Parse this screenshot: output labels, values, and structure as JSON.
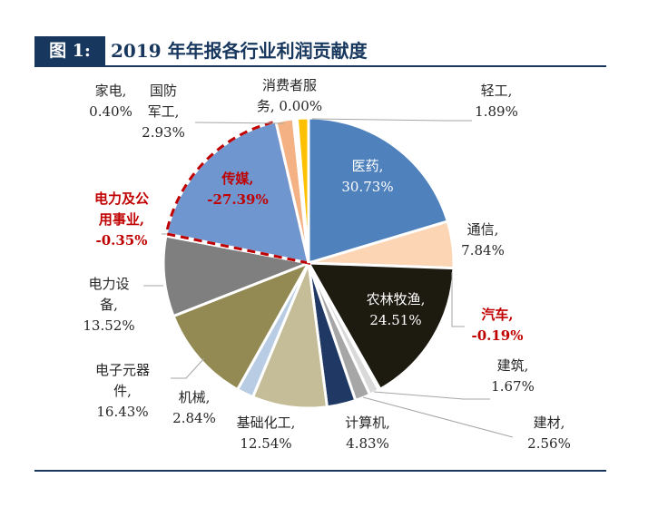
{
  "header": {
    "figure_label": "图 1:",
    "title": "2019 年年报各行业利润贡献度"
  },
  "colors": {
    "navy": "#17375e",
    "highlight": "#c00000",
    "text": "#262626"
  },
  "chart_data": {
    "type": "pie",
    "title": "2019 年年报各行业利润贡献度",
    "unit": "%",
    "slices": [
      {
        "key": "yiyao",
        "name": "医药",
        "value": 30.73,
        "value_label": "30.73%",
        "color": "#4f81bd",
        "text_color": "#ffffff",
        "highlight": false
      },
      {
        "key": "tongxin",
        "name": "通信",
        "value": 7.84,
        "value_label": "7.84%",
        "color": "#fcd5b5",
        "text_color": "#262626",
        "highlight": false
      },
      {
        "key": "nonglin",
        "name": "农林牧渔",
        "value": 24.51,
        "value_label": "24.51%",
        "color": "#1d1b10",
        "text_color": "#ffffff",
        "highlight": false
      },
      {
        "key": "qiche",
        "name": "汽车",
        "value": -0.19,
        "value_label": "-0.19%",
        "color": "#ffffff",
        "text_color": "#c00000",
        "highlight": true
      },
      {
        "key": "jianzhu",
        "name": "建筑",
        "value": 1.67,
        "value_label": "1.67%",
        "color": "#d9d9d9",
        "text_color": "#262626",
        "highlight": false
      },
      {
        "key": "jiancai",
        "name": "建材",
        "value": 2.56,
        "value_label": "2.56%",
        "color": "#a6a6a6",
        "text_color": "#262626",
        "highlight": false
      },
      {
        "key": "jisuanji",
        "name": "计算机",
        "value": 4.83,
        "value_label": "4.83%",
        "color": "#1f3864",
        "text_color": "#262626",
        "highlight": false
      },
      {
        "key": "jichu",
        "name": "基础化工",
        "value": 12.54,
        "value_label": "12.54%",
        "color": "#c4bd97",
        "text_color": "#262626",
        "highlight": false
      },
      {
        "key": "jixie",
        "name": "机械",
        "value": 2.84,
        "value_label": "2.84%",
        "color": "#b8cce4",
        "text_color": "#262626",
        "highlight": false
      },
      {
        "key": "dianzi",
        "name": "电子元器件",
        "value": 16.43,
        "value_label": "16.43%",
        "color": "#938953",
        "text_color": "#262626",
        "highlight": false
      },
      {
        "key": "dlsb",
        "name": "电力设备",
        "value": 13.52,
        "value_label": "13.52%",
        "color": "#7f7f7f",
        "text_color": "#262626",
        "highlight": false
      },
      {
        "key": "dlgy",
        "name": "电力及公用事业",
        "value": -0.35,
        "value_label": "-0.35%",
        "color": "#ffffff",
        "text_color": "#c00000",
        "highlight": true
      },
      {
        "key": "chuanmei",
        "name": "传媒",
        "value": -27.39,
        "value_label": "-27.39%",
        "color": "#7096cf",
        "text_color": "#c00000",
        "highlight": true
      },
      {
        "key": "guofang",
        "name": "国防军工",
        "value": 2.93,
        "value_label": "2.93%",
        "color": "#f4b183",
        "text_color": "#262626",
        "highlight": false
      },
      {
        "key": "jiadian",
        "name": "家电",
        "value": 0.4,
        "value_label": "0.40%",
        "color": "#ffffff",
        "text_color": "#262626",
        "highlight": false
      },
      {
        "key": "xiaofei",
        "name": "消费者服务",
        "value": 0.0,
        "value_label": "0.00%",
        "color": "#ffffff",
        "text_color": "#262626",
        "highlight": false
      },
      {
        "key": "qinggong",
        "name": "轻工",
        "value": 1.89,
        "value_label": "1.89%",
        "color": "#ffc000",
        "text_color": "#262626",
        "highlight": false
      }
    ],
    "labels": {
      "yiyao": [
        "医药,",
        "30.73%"
      ],
      "tongxin": [
        "通信,",
        "7.84%"
      ],
      "nonglin": [
        "农林牧渔,",
        "24.51%"
      ],
      "qiche": [
        "汽车,",
        "-0.19%"
      ],
      "jianzhu": [
        "建筑,",
        "1.67%"
      ],
      "jiancai": [
        "建材,",
        "2.56%"
      ],
      "jisuanji": [
        "计算机,",
        "4.83%"
      ],
      "jichu": [
        "基础化工,",
        "12.54%"
      ],
      "jixie": [
        "机械,",
        "2.84%"
      ],
      "dianzi": [
        "电子元器",
        "件,",
        "16.43%"
      ],
      "dlsb": [
        "电力设",
        "备,",
        "13.52%"
      ],
      "dlgy": [
        "电力及公",
        "用事业,",
        "-0.35%"
      ],
      "chuanmei": [
        "传媒,",
        "-27.39%"
      ],
      "guofang": [
        "国防",
        "军工,",
        "2.93%"
      ],
      "jiadian": [
        "家电,",
        "0.40%"
      ],
      "xiaofei": [
        "消费者服",
        "务, 0.00%"
      ],
      "qinggong": [
        "轻工,",
        "1.89%"
      ]
    }
  }
}
